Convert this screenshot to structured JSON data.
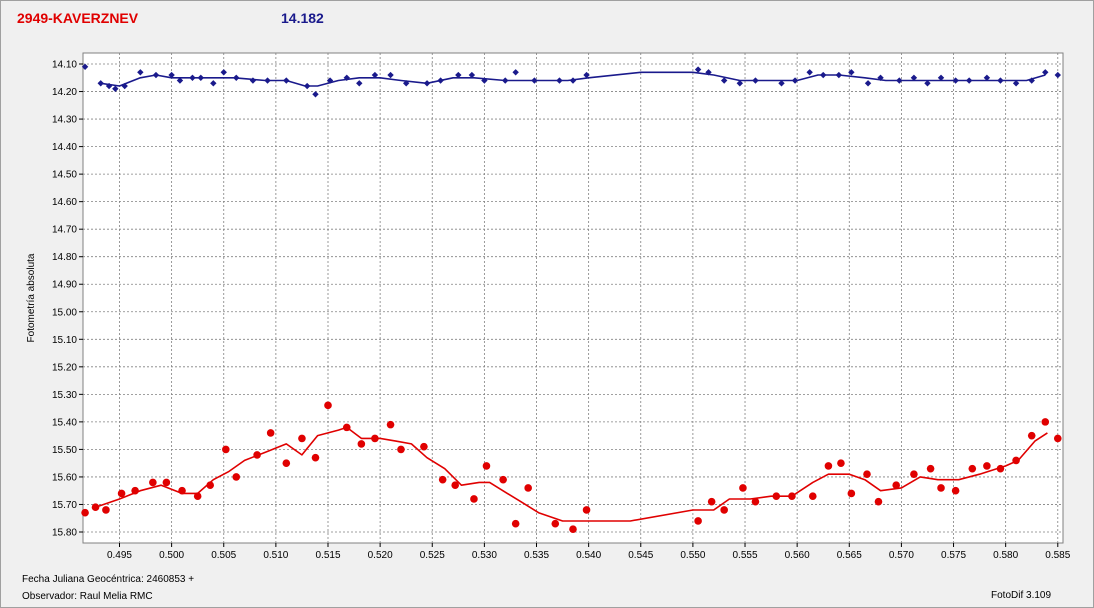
{
  "header": {
    "object": "2949-KAVERZNEV",
    "magnitude": "14.182"
  },
  "footer": {
    "date_label": "Fecha Juliana Geocéntrica: 2460853 +",
    "observer_label": "Observador: Raul Melia RMC",
    "software_label": "FotoDif 3.109"
  },
  "colors": {
    "comparison": "#1a1a8c",
    "target": "#e00000",
    "grid": "#808080",
    "plot_bg": "#ffffff"
  },
  "chart_data": {
    "type": "scatter",
    "ylabel": "Fotometría absoluta",
    "xlabel": "",
    "xlim": [
      0.4915,
      0.5855
    ],
    "ylim": [
      15.84,
      14.06
    ],
    "y_inverted": true,
    "grid": true,
    "x_ticks": [
      0.495,
      0.5,
      0.505,
      0.51,
      0.515,
      0.52,
      0.525,
      0.53,
      0.535,
      0.54,
      0.545,
      0.55,
      0.555,
      0.56,
      0.565,
      0.57,
      0.575,
      0.58,
      0.585
    ],
    "x_tick_labels": [
      "0.495",
      "0.500",
      "0.505",
      "0.510",
      "0.515",
      "0.520",
      "0.525",
      "0.530",
      "0.535",
      "0.540",
      "0.545",
      "0.550",
      "0.555",
      "0.560",
      "0.565",
      "0.570",
      "0.575",
      "0.580",
      "0.585"
    ],
    "y_ticks": [
      14.1,
      14.2,
      14.3,
      14.4,
      14.5,
      14.6,
      14.7,
      14.8,
      14.9,
      15.0,
      15.1,
      15.2,
      15.3,
      15.4,
      15.5,
      15.6,
      15.7,
      15.8
    ],
    "y_tick_labels": [
      "14.10",
      "14.20",
      "14.30",
      "14.40",
      "14.50",
      "14.60",
      "14.70",
      "14.80",
      "14.90",
      "15.00",
      "15.10",
      "15.20",
      "15.30",
      "15.40",
      "15.50",
      "15.60",
      "15.70",
      "15.80"
    ],
    "series": [
      {
        "marker": "diamond",
        "color": "#1a1a8c",
        "points": [
          [
            0.4917,
            14.11
          ],
          [
            0.4932,
            14.17
          ],
          [
            0.494,
            14.18
          ],
          [
            0.4946,
            14.19
          ],
          [
            0.4955,
            14.18
          ],
          [
            0.497,
            14.13
          ],
          [
            0.4985,
            14.14
          ],
          [
            0.5,
            14.14
          ],
          [
            0.5008,
            14.16
          ],
          [
            0.502,
            14.15
          ],
          [
            0.5028,
            14.15
          ],
          [
            0.504,
            14.17
          ],
          [
            0.505,
            14.13
          ],
          [
            0.5062,
            14.15
          ],
          [
            0.5078,
            14.16
          ],
          [
            0.5092,
            14.16
          ],
          [
            0.511,
            14.16
          ],
          [
            0.513,
            14.18
          ],
          [
            0.5138,
            14.21
          ],
          [
            0.5152,
            14.16
          ],
          [
            0.5168,
            14.15
          ],
          [
            0.518,
            14.17
          ],
          [
            0.5195,
            14.14
          ],
          [
            0.521,
            14.14
          ],
          [
            0.5225,
            14.17
          ],
          [
            0.5245,
            14.17
          ],
          [
            0.5258,
            14.16
          ],
          [
            0.5275,
            14.14
          ],
          [
            0.5288,
            14.14
          ],
          [
            0.53,
            14.16
          ],
          [
            0.532,
            14.16
          ],
          [
            0.533,
            14.13
          ],
          [
            0.5348,
            14.16
          ],
          [
            0.5372,
            14.16
          ],
          [
            0.5385,
            14.16
          ],
          [
            0.5398,
            14.14
          ],
          [
            0.5505,
            14.12
          ],
          [
            0.5515,
            14.13
          ],
          [
            0.553,
            14.16
          ],
          [
            0.5545,
            14.17
          ],
          [
            0.556,
            14.16
          ],
          [
            0.5585,
            14.17
          ],
          [
            0.5598,
            14.16
          ],
          [
            0.5612,
            14.13
          ],
          [
            0.5625,
            14.14
          ],
          [
            0.564,
            14.14
          ],
          [
            0.5652,
            14.13
          ],
          [
            0.5668,
            14.17
          ],
          [
            0.568,
            14.15
          ],
          [
            0.5698,
            14.16
          ],
          [
            0.5712,
            14.15
          ],
          [
            0.5725,
            14.17
          ],
          [
            0.5738,
            14.15
          ],
          [
            0.5752,
            14.16
          ],
          [
            0.5765,
            14.16
          ],
          [
            0.5782,
            14.15
          ],
          [
            0.5795,
            14.16
          ],
          [
            0.581,
            14.17
          ],
          [
            0.5825,
            14.16
          ],
          [
            0.5838,
            14.13
          ],
          [
            0.585,
            14.14
          ]
        ],
        "trend": [
          [
            0.4932,
            14.17
          ],
          [
            0.495,
            14.18
          ],
          [
            0.497,
            14.15
          ],
          [
            0.4985,
            14.14
          ],
          [
            0.5,
            14.15
          ],
          [
            0.503,
            14.15
          ],
          [
            0.506,
            14.15
          ],
          [
            0.509,
            14.16
          ],
          [
            0.511,
            14.16
          ],
          [
            0.5128,
            14.18
          ],
          [
            0.514,
            14.18
          ],
          [
            0.516,
            14.16
          ],
          [
            0.518,
            14.15
          ],
          [
            0.52,
            14.15
          ],
          [
            0.522,
            14.16
          ],
          [
            0.5245,
            14.17
          ],
          [
            0.527,
            14.15
          ],
          [
            0.529,
            14.15
          ],
          [
            0.532,
            14.16
          ],
          [
            0.535,
            14.16
          ],
          [
            0.538,
            14.16
          ],
          [
            0.54,
            14.15
          ],
          [
            0.545,
            14.13
          ],
          [
            0.55,
            14.13
          ],
          [
            0.552,
            14.14
          ],
          [
            0.5545,
            14.16
          ],
          [
            0.5575,
            14.16
          ],
          [
            0.56,
            14.16
          ],
          [
            0.562,
            14.14
          ],
          [
            0.564,
            14.14
          ],
          [
            0.5665,
            14.15
          ],
          [
            0.5685,
            14.16
          ],
          [
            0.571,
            14.16
          ],
          [
            0.574,
            14.16
          ],
          [
            0.577,
            14.16
          ],
          [
            0.58,
            14.16
          ],
          [
            0.582,
            14.16
          ],
          [
            0.5838,
            14.14
          ]
        ]
      },
      {
        "marker": "circle",
        "color": "#e00000",
        "points": [
          [
            0.4917,
            15.73
          ],
          [
            0.4927,
            15.71
          ],
          [
            0.4937,
            15.72
          ],
          [
            0.4952,
            15.66
          ],
          [
            0.4965,
            15.65
          ],
          [
            0.4982,
            15.62
          ],
          [
            0.4995,
            15.62
          ],
          [
            0.501,
            15.65
          ],
          [
            0.5025,
            15.67
          ],
          [
            0.5037,
            15.63
          ],
          [
            0.5052,
            15.5
          ],
          [
            0.5062,
            15.6
          ],
          [
            0.5082,
            15.52
          ],
          [
            0.5095,
            15.44
          ],
          [
            0.511,
            15.55
          ],
          [
            0.5125,
            15.46
          ],
          [
            0.5138,
            15.53
          ],
          [
            0.515,
            15.34
          ],
          [
            0.5168,
            15.42
          ],
          [
            0.5182,
            15.48
          ],
          [
            0.5195,
            15.46
          ],
          [
            0.521,
            15.41
          ],
          [
            0.522,
            15.5
          ],
          [
            0.5242,
            15.49
          ],
          [
            0.526,
            15.61
          ],
          [
            0.5272,
            15.63
          ],
          [
            0.529,
            15.68
          ],
          [
            0.5302,
            15.56
          ],
          [
            0.5318,
            15.61
          ],
          [
            0.533,
            15.77
          ],
          [
            0.5342,
            15.64
          ],
          [
            0.5368,
            15.77
          ],
          [
            0.5385,
            15.79
          ],
          [
            0.5398,
            15.72
          ],
          [
            0.5505,
            15.76
          ],
          [
            0.5518,
            15.69
          ],
          [
            0.553,
            15.72
          ],
          [
            0.5548,
            15.64
          ],
          [
            0.556,
            15.69
          ],
          [
            0.558,
            15.67
          ],
          [
            0.5595,
            15.67
          ],
          [
            0.5615,
            15.67
          ],
          [
            0.563,
            15.56
          ],
          [
            0.5642,
            15.55
          ],
          [
            0.5652,
            15.66
          ],
          [
            0.5667,
            15.59
          ],
          [
            0.5678,
            15.69
          ],
          [
            0.5695,
            15.63
          ],
          [
            0.5712,
            15.59
          ],
          [
            0.5728,
            15.57
          ],
          [
            0.5738,
            15.64
          ],
          [
            0.5752,
            15.65
          ],
          [
            0.5768,
            15.57
          ],
          [
            0.5782,
            15.56
          ],
          [
            0.5795,
            15.57
          ],
          [
            0.581,
            15.54
          ],
          [
            0.5825,
            15.45
          ],
          [
            0.5838,
            15.4
          ],
          [
            0.585,
            15.46
          ]
        ],
        "trend": [
          [
            0.4927,
            15.71
          ],
          [
            0.495,
            15.68
          ],
          [
            0.497,
            15.65
          ],
          [
            0.499,
            15.63
          ],
          [
            0.501,
            15.66
          ],
          [
            0.5025,
            15.66
          ],
          [
            0.504,
            15.61
          ],
          [
            0.5055,
            15.58
          ],
          [
            0.507,
            15.54
          ],
          [
            0.509,
            15.51
          ],
          [
            0.511,
            15.48
          ],
          [
            0.5125,
            15.52
          ],
          [
            0.514,
            15.45
          ],
          [
            0.516,
            15.43
          ],
          [
            0.5168,
            15.42
          ],
          [
            0.5182,
            15.46
          ],
          [
            0.52,
            15.46
          ],
          [
            0.5215,
            15.47
          ],
          [
            0.523,
            15.48
          ],
          [
            0.5245,
            15.53
          ],
          [
            0.5262,
            15.57
          ],
          [
            0.5278,
            15.63
          ],
          [
            0.5295,
            15.62
          ],
          [
            0.5305,
            15.62
          ],
          [
            0.5322,
            15.66
          ],
          [
            0.5335,
            15.69
          ],
          [
            0.5352,
            15.73
          ],
          [
            0.5375,
            15.76
          ],
          [
            0.54,
            15.76
          ],
          [
            0.544,
            15.76
          ],
          [
            0.55,
            15.72
          ],
          [
            0.552,
            15.72
          ],
          [
            0.5535,
            15.68
          ],
          [
            0.5555,
            15.68
          ],
          [
            0.5575,
            15.67
          ],
          [
            0.5595,
            15.67
          ],
          [
            0.5615,
            15.62
          ],
          [
            0.563,
            15.59
          ],
          [
            0.565,
            15.59
          ],
          [
            0.5665,
            15.61
          ],
          [
            0.568,
            15.65
          ],
          [
            0.57,
            15.64
          ],
          [
            0.5718,
            15.6
          ],
          [
            0.5735,
            15.61
          ],
          [
            0.5755,
            15.61
          ],
          [
            0.5775,
            15.59
          ],
          [
            0.58,
            15.56
          ],
          [
            0.5812,
            15.54
          ],
          [
            0.5828,
            15.47
          ],
          [
            0.584,
            15.44
          ]
        ]
      }
    ]
  }
}
